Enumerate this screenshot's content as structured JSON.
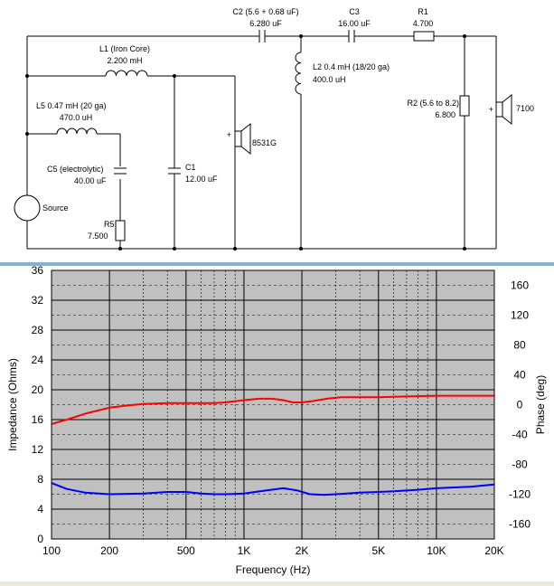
{
  "schematic": {
    "components": {
      "l1": {
        "name": "L1 (Iron Core)",
        "value": "2.200 mH"
      },
      "l5": {
        "name": "L5 0.47 mH (20 ga)",
        "value": "470.0 uH"
      },
      "c5": {
        "name": "C5 (electrolytic)",
        "value": "40.00 uF"
      },
      "r5": {
        "name": "R5",
        "value": "7.500"
      },
      "source": {
        "name": "Source"
      },
      "c1": {
        "name": "C1",
        "value": "12.00 uF"
      },
      "woofer": {
        "name": "8531G"
      },
      "c2": {
        "name": "C2 (5.6 + 0.68 uF)",
        "value": "6.280 uF"
      },
      "l2": {
        "name": "L2 0.4 mH (18/20 ga)",
        "value": "400.0 uH"
      },
      "c3": {
        "name": "C3",
        "value": "16.00 uF"
      },
      "r1": {
        "name": "R1",
        "value": "4.700"
      },
      "r2": {
        "name": "R2 (5.6 to 8.2)",
        "value": "6.800"
      },
      "tweeter": {
        "name": "7100"
      }
    }
  },
  "chart_data": {
    "type": "line",
    "xlabel": "Frequency (Hz)",
    "ylabel": "Impedance (Ohms)",
    "y2label": "Phase (deg)",
    "x_scale": "log",
    "xlim": [
      100,
      20000
    ],
    "ylim": [
      0,
      36
    ],
    "y2lim": [
      -180,
      180
    ],
    "x_ticks": [
      100,
      200,
      500,
      1000,
      2000,
      5000,
      10000,
      20000
    ],
    "x_tick_labels": [
      "100",
      "200",
      "500",
      "1K",
      "2K",
      "5K",
      "10K",
      "20K"
    ],
    "y_ticks": [
      0,
      4,
      8,
      12,
      16,
      20,
      24,
      28,
      32,
      36
    ],
    "y_tick_labels": [
      "0",
      "4",
      "8",
      "12",
      "16",
      "20",
      "24",
      "28",
      "32",
      "36"
    ],
    "y2_ticks": [
      -160,
      -120,
      -80,
      -40,
      0,
      40,
      80,
      120,
      160
    ],
    "y2_tick_labels": [
      "-160",
      "-120",
      "-80",
      "-40",
      "0",
      "40",
      "80",
      "120",
      "160"
    ],
    "grid": true,
    "colors": {
      "background": "#c0c0c0",
      "impedance": "#0000ff",
      "phase": "#ff0000"
    },
    "series": [
      {
        "axis": "left",
        "color": "#0000ff",
        "points": [
          [
            100,
            7.5
          ],
          [
            120,
            6.7
          ],
          [
            150,
            6.2
          ],
          [
            200,
            6.0
          ],
          [
            300,
            6.1
          ],
          [
            400,
            6.3
          ],
          [
            500,
            6.3
          ],
          [
            600,
            6.1
          ],
          [
            700,
            6.0
          ],
          [
            800,
            6.0
          ],
          [
            1000,
            6.1
          ],
          [
            1300,
            6.5
          ],
          [
            1600,
            6.8
          ],
          [
            1900,
            6.5
          ],
          [
            2200,
            6.0
          ],
          [
            2600,
            5.9
          ],
          [
            3000,
            6.0
          ],
          [
            4000,
            6.2
          ],
          [
            5000,
            6.3
          ],
          [
            6000,
            6.4
          ],
          [
            7000,
            6.5
          ],
          [
            8000,
            6.6
          ],
          [
            10000,
            6.8
          ],
          [
            12000,
            6.9
          ],
          [
            15000,
            7.0
          ],
          [
            20000,
            7.3
          ]
        ]
      },
      {
        "axis": "right",
        "color": "#ff0000",
        "points": [
          [
            100,
            -26
          ],
          [
            120,
            -20
          ],
          [
            150,
            -12
          ],
          [
            200,
            -4
          ],
          [
            250,
            -1
          ],
          [
            300,
            1
          ],
          [
            400,
            2
          ],
          [
            500,
            2
          ],
          [
            600,
            2
          ],
          [
            700,
            2
          ],
          [
            800,
            3
          ],
          [
            1000,
            6
          ],
          [
            1200,
            8
          ],
          [
            1400,
            8
          ],
          [
            1600,
            6
          ],
          [
            1800,
            3
          ],
          [
            2000,
            3
          ],
          [
            2300,
            5
          ],
          [
            2700,
            8
          ],
          [
            3200,
            10
          ],
          [
            4000,
            10
          ],
          [
            5000,
            10
          ],
          [
            7000,
            11
          ],
          [
            10000,
            12
          ],
          [
            15000,
            12
          ],
          [
            20000,
            12
          ]
        ]
      }
    ]
  }
}
